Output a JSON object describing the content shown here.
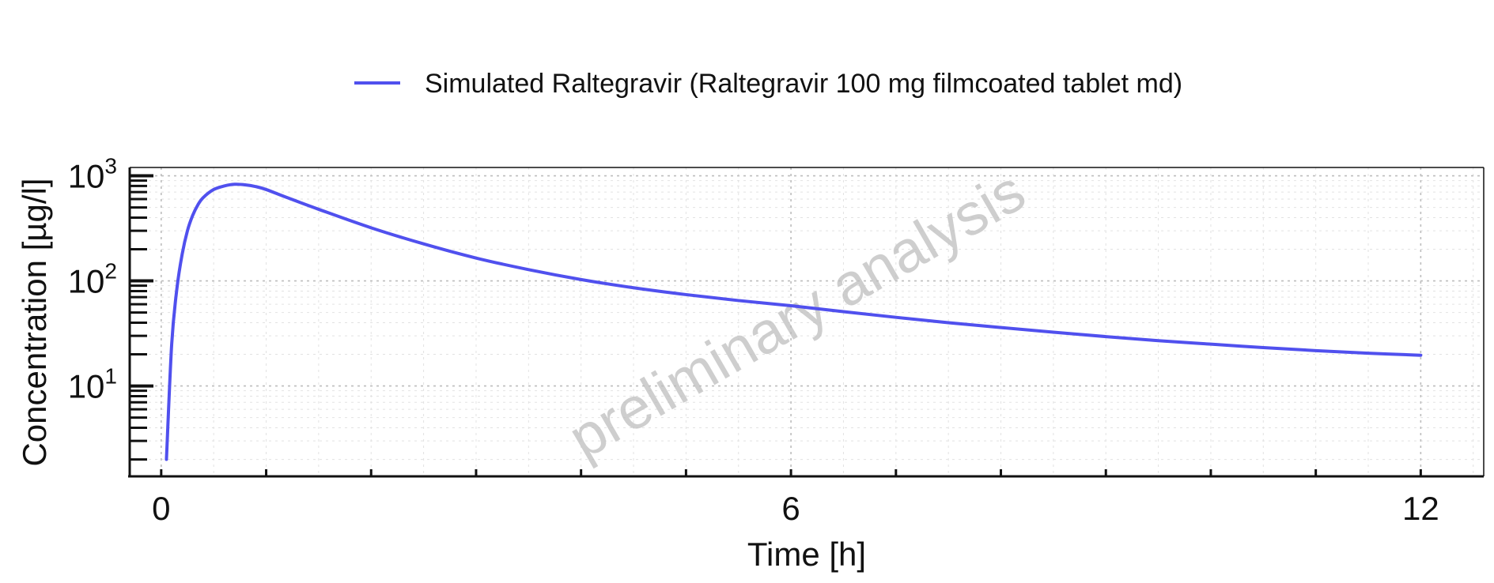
{
  "chart_data": {
    "type": "line",
    "title": "",
    "xlabel": "Time [h]",
    "ylabel": "Concentration [µg/l]",
    "x_scale": "linear",
    "y_scale": "log",
    "xlim": [
      -0.3,
      12.6
    ],
    "ylim": [
      1.38,
      1200
    ],
    "x_ticks": [
      0,
      6,
      12
    ],
    "y_ticks": [
      10,
      100,
      1000
    ],
    "y_tick_labels": [
      {
        "base": "10",
        "exp": "1"
      },
      {
        "base": "10",
        "exp": "2"
      },
      {
        "base": "10",
        "exp": "3"
      }
    ],
    "grid": true,
    "legend_position": "top-center",
    "watermark": "preliminary analysis",
    "series": [
      {
        "name": "Simulated Raltegravir (Raltegravir 100 mg filmcoated tablet md)",
        "color": "#5050ee",
        "x": [
          0.05,
          0.1,
          0.15,
          0.2,
          0.25,
          0.3,
          0.35,
          0.4,
          0.5,
          0.6,
          0.7,
          0.8,
          0.9,
          1.0,
          1.2,
          1.5,
          2.0,
          2.5,
          3.0,
          3.5,
          4.0,
          4.5,
          5.0,
          5.5,
          6.0,
          6.5,
          7.0,
          7.5,
          8.0,
          8.5,
          9.0,
          9.5,
          10.0,
          10.5,
          11.0,
          11.5,
          12.0
        ],
        "y": [
          2.0,
          25,
          85,
          180,
          300,
          420,
          530,
          620,
          740,
          800,
          830,
          820,
          790,
          740,
          620,
          480,
          320,
          225,
          165,
          128,
          103,
          86,
          74,
          65,
          58,
          51,
          45,
          40,
          36,
          32.5,
          29.5,
          27,
          25,
          23.2,
          21.7,
          20.5,
          19.6
        ]
      }
    ]
  }
}
